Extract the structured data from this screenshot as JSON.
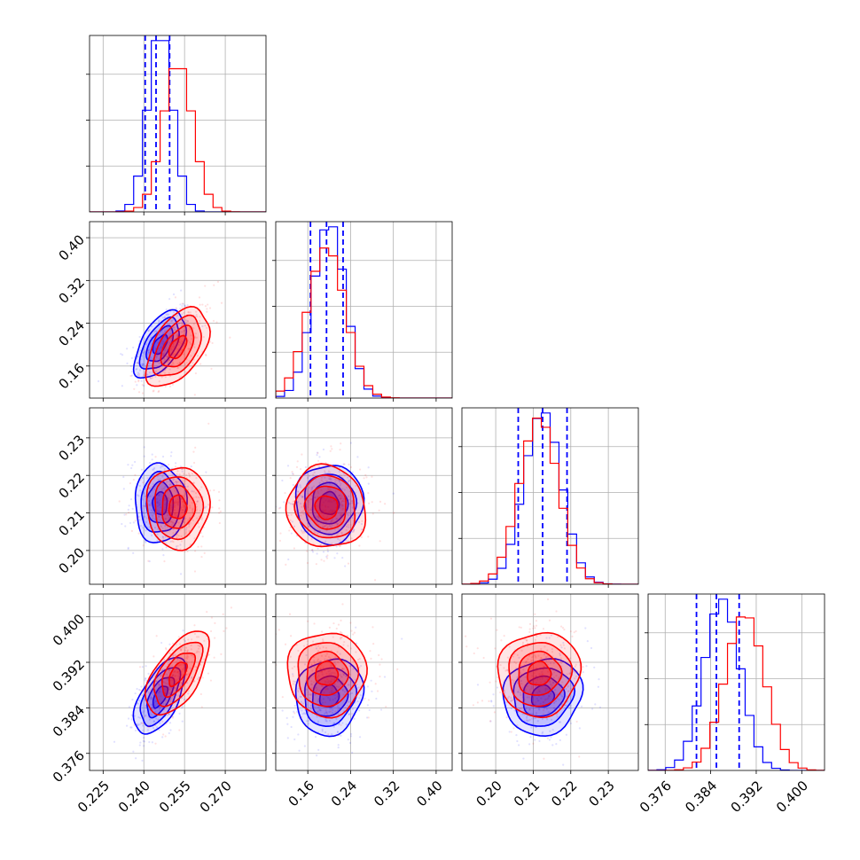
{
  "colors": {
    "blue": "#0000ff",
    "red": "#ff0000",
    "grid": "#b0b0b0"
  },
  "chart_data": {
    "type": "corner",
    "n_params": 4,
    "grid": true,
    "axes": [
      {
        "range": [
          0.22,
          0.285
        ],
        "ticks": [
          0.225,
          0.24,
          0.255,
          0.27
        ],
        "tick_labels": [
          "0.225",
          "0.240",
          "0.255",
          "0.270"
        ]
      },
      {
        "range": [
          0.1,
          0.43
        ],
        "ticks": [
          0.16,
          0.24,
          0.32,
          0.4
        ],
        "tick_labels": [
          "0.16",
          "0.24",
          "0.32",
          "0.40"
        ]
      },
      {
        "range": [
          0.191,
          0.238
        ],
        "ticks": [
          0.2,
          0.21,
          0.22,
          0.23
        ],
        "tick_labels": [
          "0.20",
          "0.21",
          "0.22",
          "0.23"
        ]
      },
      {
        "range": [
          0.373,
          0.404
        ],
        "ticks": [
          0.376,
          0.384,
          0.392,
          0.4
        ],
        "tick_labels": [
          "0.376",
          "0.384",
          "0.392",
          "0.400"
        ]
      }
    ],
    "series": [
      {
        "color": "blue",
        "means": [
          0.246,
          0.2,
          0.2125,
          0.386
        ],
        "sigmas": [
          0.0045,
          0.03,
          0.005,
          0.0032
        ],
        "correlations": {
          "0-1": 0.55,
          "0-2": 0.0,
          "0-3": 0.6,
          "1-2": 0.0,
          "1-3": 0.1,
          "2-3": 0.1
        },
        "quantiles": [
          [
            0.2405,
            0.2445,
            0.2495
          ],
          [
            0.165,
            0.195,
            0.226
          ],
          [
            0.206,
            0.2125,
            0.219
          ],
          [
            0.3815,
            0.385,
            0.389
          ]
        ]
      },
      {
        "color": "red",
        "means": [
          0.2525,
          0.195,
          0.2115,
          0.39
        ],
        "sigmas": [
          0.0055,
          0.035,
          0.0052,
          0.0035
        ],
        "correlations": {
          "0-1": 0.5,
          "0-2": 0.0,
          "0-3": 0.6,
          "1-2": -0.05,
          "1-3": 0.0,
          "2-3": 0.05
        },
        "quantiles": []
      }
    ]
  }
}
